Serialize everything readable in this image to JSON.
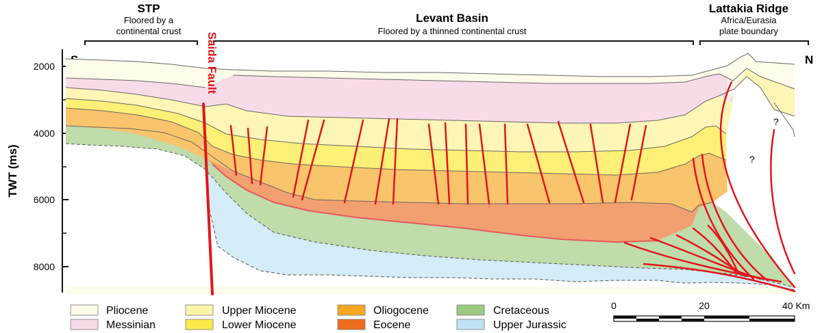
{
  "regions": {
    "stp": {
      "title": "STP",
      "subtitle_1": "Floored by a",
      "subtitle_2": "continental crust"
    },
    "levant": {
      "title": "Levant Basin",
      "subtitle": "Floored by a thinned continental crust"
    },
    "lattakia": {
      "title": "Lattakia Ridge",
      "subtitle_1": "Africa/Eurasia",
      "subtitle_2": "plate boundary"
    }
  },
  "ends": {
    "south": "S",
    "north": "N"
  },
  "fault_label": "Saida Fault",
  "axis": {
    "title": "TWT (ms)",
    "ticks": [
      "2000",
      "4000",
      "6000",
      "8000"
    ]
  },
  "unknown_marks": [
    "?",
    "?"
  ],
  "legend": [
    {
      "label": "Pliocene",
      "color": "#fdfbea"
    },
    {
      "label": "Messinian",
      "color": "#f8dbe9"
    },
    {
      "label": "Upper Miocene",
      "color": "#fdf6a8"
    },
    {
      "label": "Lower Miocene",
      "color": "#fde94a"
    },
    {
      "label": "Oliogocene",
      "color": "#f6a623"
    },
    {
      "label": "Eocene",
      "color": "#ee6c1d"
    },
    {
      "label": "Cretaceous",
      "color": "#9cc980"
    },
    {
      "label": "Upper Jurassic",
      "color": "#bfe3f3"
    }
  ],
  "layer_colors": {
    "top_fill": "#fdfbea",
    "messinian": "#f8dbe9",
    "upper_miocene": "#fdf6b6",
    "lower_miocene": "#fdf076",
    "oligocene": "#f9c46c",
    "eocene": "#f3a070",
    "cretaceous": "#bfdcaa",
    "jurassic": "#d4ecf6",
    "fault": "#e3141b"
  },
  "scale_bar": {
    "labels": [
      "0",
      "20",
      "40 Km"
    ]
  }
}
